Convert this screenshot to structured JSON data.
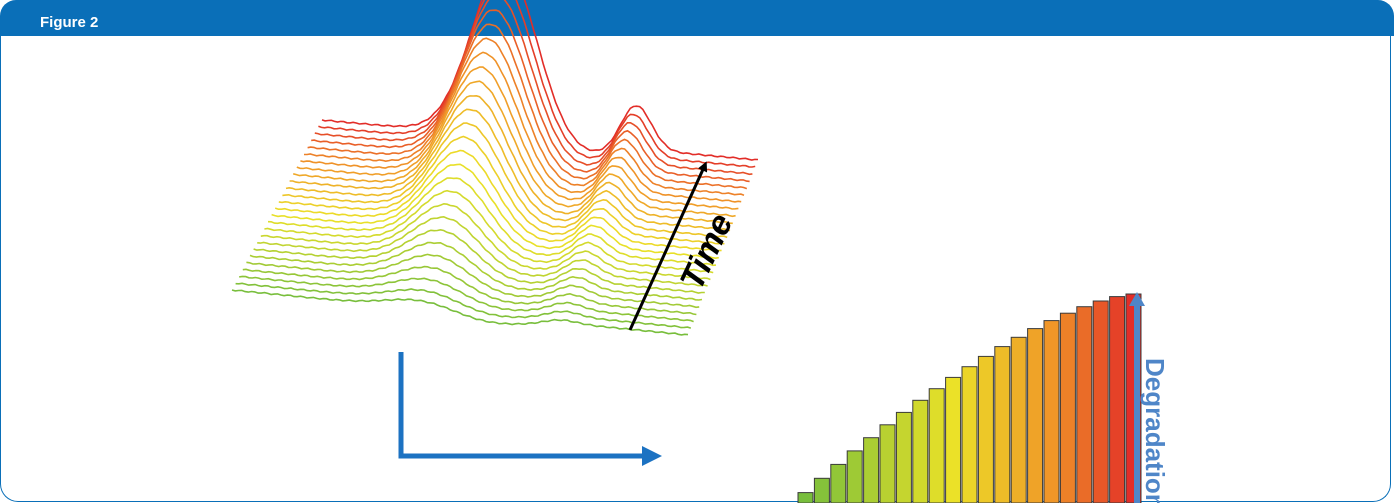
{
  "header": {
    "title": "Figure 2",
    "color": "#0a6fb8"
  },
  "diagram": {
    "time_label": "Time",
    "degradation_label": "Degradation",
    "arrow_color": "#1c72c2",
    "degradation_color": "#4f86c8",
    "spectra_count": 26,
    "bar_count": 21,
    "bar_level_low": 0.05,
    "bar_level_high": 1.0
  }
}
